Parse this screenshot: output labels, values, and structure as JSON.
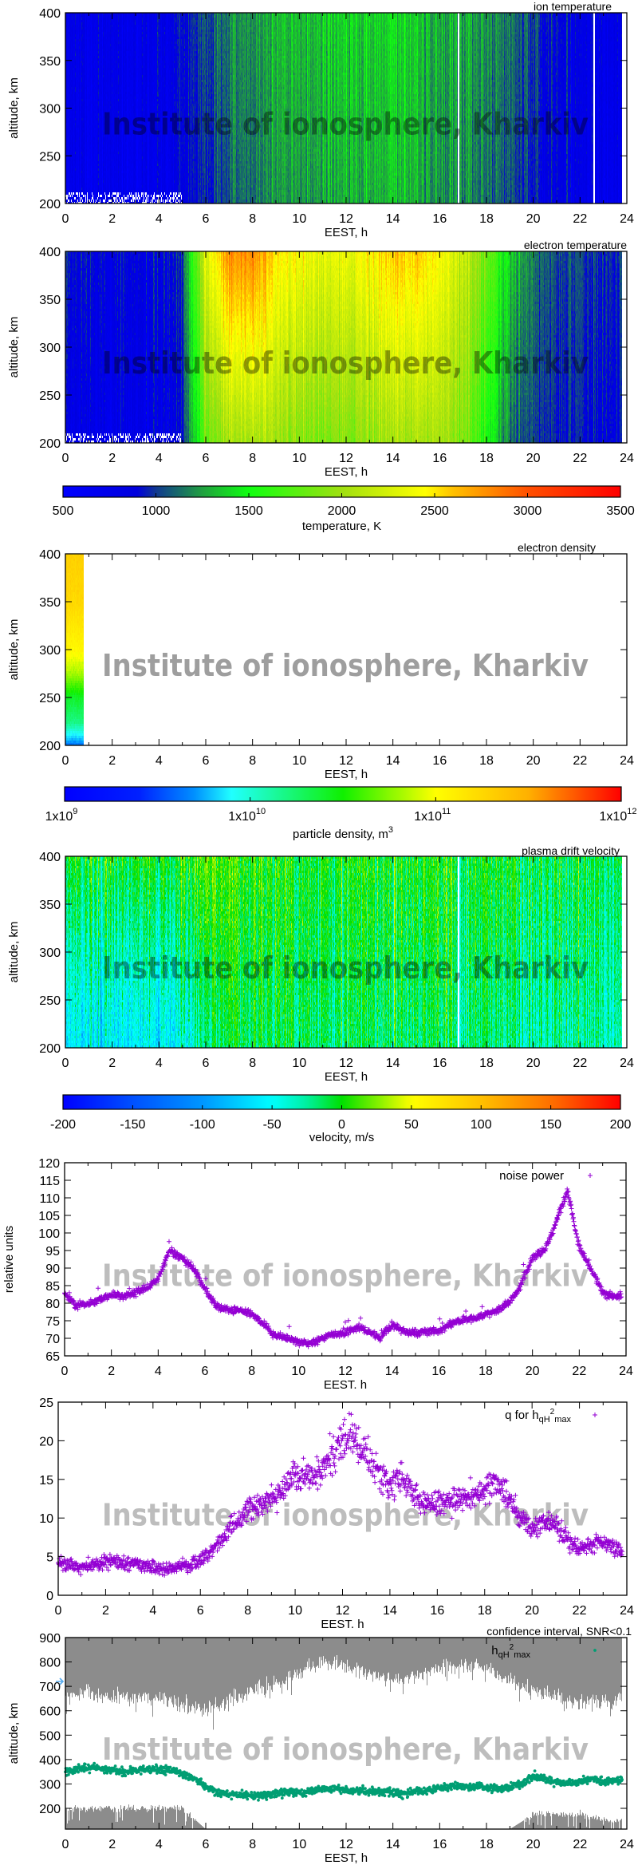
{
  "watermark": "Institute of ionosphere, Kharkiv",
  "colors": {
    "frame": "#000000",
    "scatter_purple": "#9400d3",
    "scatter_green": "#009e73",
    "confidence_gray": "#8c8c8c",
    "watermark_gray": "#bdbdbd"
  },
  "x_ticks": [
    "0",
    "2",
    "4",
    "6",
    "8",
    "10",
    "12",
    "14",
    "16",
    "18",
    "20",
    "22",
    "24"
  ],
  "chart_data": [
    {
      "type": "heatmap",
      "title": "ion temperature",
      "xlabel": "EEST, h",
      "ylabel": "altitude, km",
      "xlim": [
        0,
        24
      ],
      "ylim": [
        200,
        400
      ],
      "yticks": [
        "200",
        "250",
        "300",
        "350",
        "400"
      ],
      "colorbar": 0,
      "hourly_mean_200km": [
        720,
        720,
        720,
        720,
        740,
        800,
        950,
        1080,
        1150,
        1200,
        1230,
        1250,
        1280,
        1300,
        1300,
        1280,
        1230,
        1200,
        1150,
        1050,
        900,
        820,
        780,
        740
      ],
      "hourly_mean_400km": [
        780,
        780,
        780,
        780,
        800,
        880,
        1050,
        1200,
        1250,
        1300,
        1330,
        1350,
        1380,
        1380,
        1380,
        1350,
        1300,
        1280,
        1250,
        1150,
        1000,
        880,
        820,
        800
      ],
      "data_end_h": 23.8,
      "gaps_h": [
        16.8,
        22.6
      ]
    },
    {
      "type": "heatmap",
      "title": "electron temperature",
      "xlabel": "EEST, h",
      "ylabel": "altitude, km",
      "xlim": [
        0,
        24
      ],
      "ylim": [
        200,
        400
      ],
      "yticks": [
        "200",
        "250",
        "300",
        "350",
        "400"
      ],
      "colorbar": 0,
      "hourly_mean_200km": [
        800,
        780,
        760,
        760,
        760,
        900,
        1800,
        2000,
        2050,
        2000,
        1900,
        1850,
        1900,
        1950,
        2000,
        2050,
        2000,
        1900,
        1500,
        1150,
        1000,
        950,
        900,
        850
      ],
      "hourly_mean_400km": [
        950,
        900,
        850,
        850,
        850,
        1000,
        2300,
        2750,
        2800,
        2500,
        2400,
        2300,
        2350,
        2450,
        2550,
        2600,
        2400,
        2200,
        1800,
        1400,
        1150,
        1050,
        1000,
        950
      ],
      "data_end_h": 23.8,
      "gaps_h": []
    },
    {
      "type": "heatmap",
      "title": "electron density",
      "xlabel": "EEST, h",
      "ylabel": "altitude, km",
      "xlim": [
        0,
        24
      ],
      "ylim": [
        200,
        400
      ],
      "yticks": [
        "200",
        "250",
        "300",
        "350",
        "400"
      ],
      "colorbar": 1,
      "altitude_km": [
        200,
        225,
        250,
        275,
        300,
        350,
        400
      ],
      "log10_density_profile": [
        9.6,
        10.2,
        10.4,
        10.8,
        11.05,
        11.25,
        11.3
      ],
      "data_end_h": 0.8,
      "gaps_h": []
    },
    {
      "type": "heatmap",
      "title": "plasma drift velocity",
      "xlabel": "EEST, h",
      "ylabel": "altitude, km",
      "xlim": [
        0,
        24
      ],
      "ylim": [
        200,
        400
      ],
      "yticks": [
        "200",
        "250",
        "300",
        "350",
        "400"
      ],
      "colorbar": 2,
      "hourly_mean_200km": [
        -60,
        -60,
        -60,
        -60,
        -60,
        -50,
        -30,
        -10,
        -10,
        -10,
        -10,
        -15,
        -15,
        -15,
        -15,
        -15,
        -15,
        -20,
        -20,
        -30,
        -30,
        -30,
        -30,
        -30
      ],
      "hourly_mean_400km": [
        -5,
        -5,
        -5,
        -5,
        -5,
        0,
        10,
        10,
        5,
        5,
        0,
        0,
        0,
        0,
        0,
        0,
        0,
        -5,
        -5,
        -10,
        -10,
        -10,
        -10,
        -10
      ],
      "data_end_h": 23.8,
      "gaps_h": [
        16.8
      ]
    },
    {
      "type": "scatter",
      "legend": "noise power",
      "xlabel": "EEST. h",
      "ylabel": "relative units",
      "xlim": [
        0,
        24
      ],
      "ylim": [
        65,
        120
      ],
      "yticks": [
        "65",
        "70",
        "75",
        "80",
        "85",
        "90",
        "95",
        "100",
        "105",
        "110",
        "115",
        "120"
      ],
      "x_step_h": 0.5,
      "values": [
        83,
        79,
        80,
        81,
        82.5,
        82,
        83,
        84,
        87,
        95,
        93,
        90,
        84,
        79,
        78,
        78,
        77,
        74,
        71,
        70,
        69,
        68.5,
        70,
        71,
        71.5,
        73,
        72,
        70,
        74,
        72,
        71.5,
        72,
        72,
        74,
        75.5,
        75.5,
        77,
        78,
        80,
        85,
        93,
        95,
        103,
        112,
        96,
        90,
        83,
        82
      ]
    },
    {
      "type": "scatter",
      "legend": {
        "main": "q for h",
        "sub": "qH",
        "sup": "2",
        "sub2": "max"
      },
      "xlabel": "EEST. h",
      "ylabel": "",
      "xlim": [
        0,
        24
      ],
      "ylim": [
        0,
        25
      ],
      "yticks": [
        "0",
        "5",
        "10",
        "15",
        "20",
        "25"
      ],
      "x_step_h": 0.5,
      "values": [
        4.2,
        3.8,
        3.7,
        3.9,
        4.5,
        4.4,
        4.1,
        4.0,
        3.6,
        3.4,
        3.6,
        3.8,
        4.5,
        6,
        7.5,
        9.5,
        11,
        11.5,
        12.5,
        14,
        16,
        15,
        15.5,
        18,
        20,
        20,
        18,
        16,
        14,
        15.5,
        13,
        12,
        12,
        12,
        12.5,
        13,
        13.5,
        15,
        13,
        10,
        8.5,
        9.5,
        9,
        7,
        6,
        6.5,
        7,
        6
      ]
    },
    {
      "type": "scatter",
      "title": "confidence interval, SNR<0.1",
      "legend": {
        "main": "h",
        "sub": "qH",
        "sup": "2",
        "sub2": "max"
      },
      "xlabel": "EEST, h",
      "ylabel": "altitude, km",
      "xlim": [
        0,
        24
      ],
      "ylim": [
        115,
        900
      ],
      "yticks": [
        "200",
        "300",
        "400",
        "500",
        "600",
        "700",
        "800",
        "900"
      ],
      "x_step_h": 0.5,
      "values": [
        350,
        360,
        370,
        365,
        355,
        350,
        355,
        360,
        360,
        355,
        345,
        325,
        290,
        265,
        255,
        255,
        250,
        255,
        260,
        265,
        265,
        270,
        280,
        280,
        275,
        270,
        270,
        270,
        265,
        260,
        270,
        275,
        285,
        290,
        290,
        290,
        285,
        280,
        285,
        300,
        330,
        320,
        305,
        300,
        310,
        320,
        310,
        315
      ],
      "confidence_upper_lower_bound_hourly_km": [
        660,
        680,
        650,
        660,
        650,
        620,
        600,
        640,
        680,
        720,
        760,
        800,
        790,
        760,
        720,
        740,
        780,
        790,
        770,
        720,
        680,
        660,
        640,
        640,
        640
      ],
      "confidence_lower_upper_bound_hourly_km": [
        200,
        200,
        200,
        200,
        200,
        200,
        115,
        115,
        115,
        115,
        115,
        115,
        115,
        115,
        115,
        115,
        115,
        115,
        115,
        115,
        175,
        175,
        175,
        150,
        150
      ]
    }
  ],
  "colorbars": [
    {
      "label": "temperature, K",
      "scale": "linear",
      "range": [
        500,
        3500
      ],
      "ticks": [
        "500",
        "1000",
        "1500",
        "2000",
        "2500",
        "3000",
        "3500"
      ]
    },
    {
      "label": "particle density, m",
      "label_sup": "3",
      "scale": "log",
      "range": [
        1000000000.0,
        1000000000000.0
      ],
      "ticks": [
        {
          "base": "1x10",
          "exp": "9"
        },
        {
          "base": "1x10",
          "exp": "10"
        },
        {
          "base": "1x10",
          "exp": "11"
        },
        {
          "base": "1x10",
          "exp": "12"
        }
      ]
    },
    {
      "label": "velocity, m/s",
      "scale": "linear",
      "range": [
        -200,
        200
      ],
      "ticks": [
        "-200",
        "-150",
        "-100",
        "-50",
        "0",
        "50",
        "100",
        "150",
        "200"
      ]
    }
  ]
}
